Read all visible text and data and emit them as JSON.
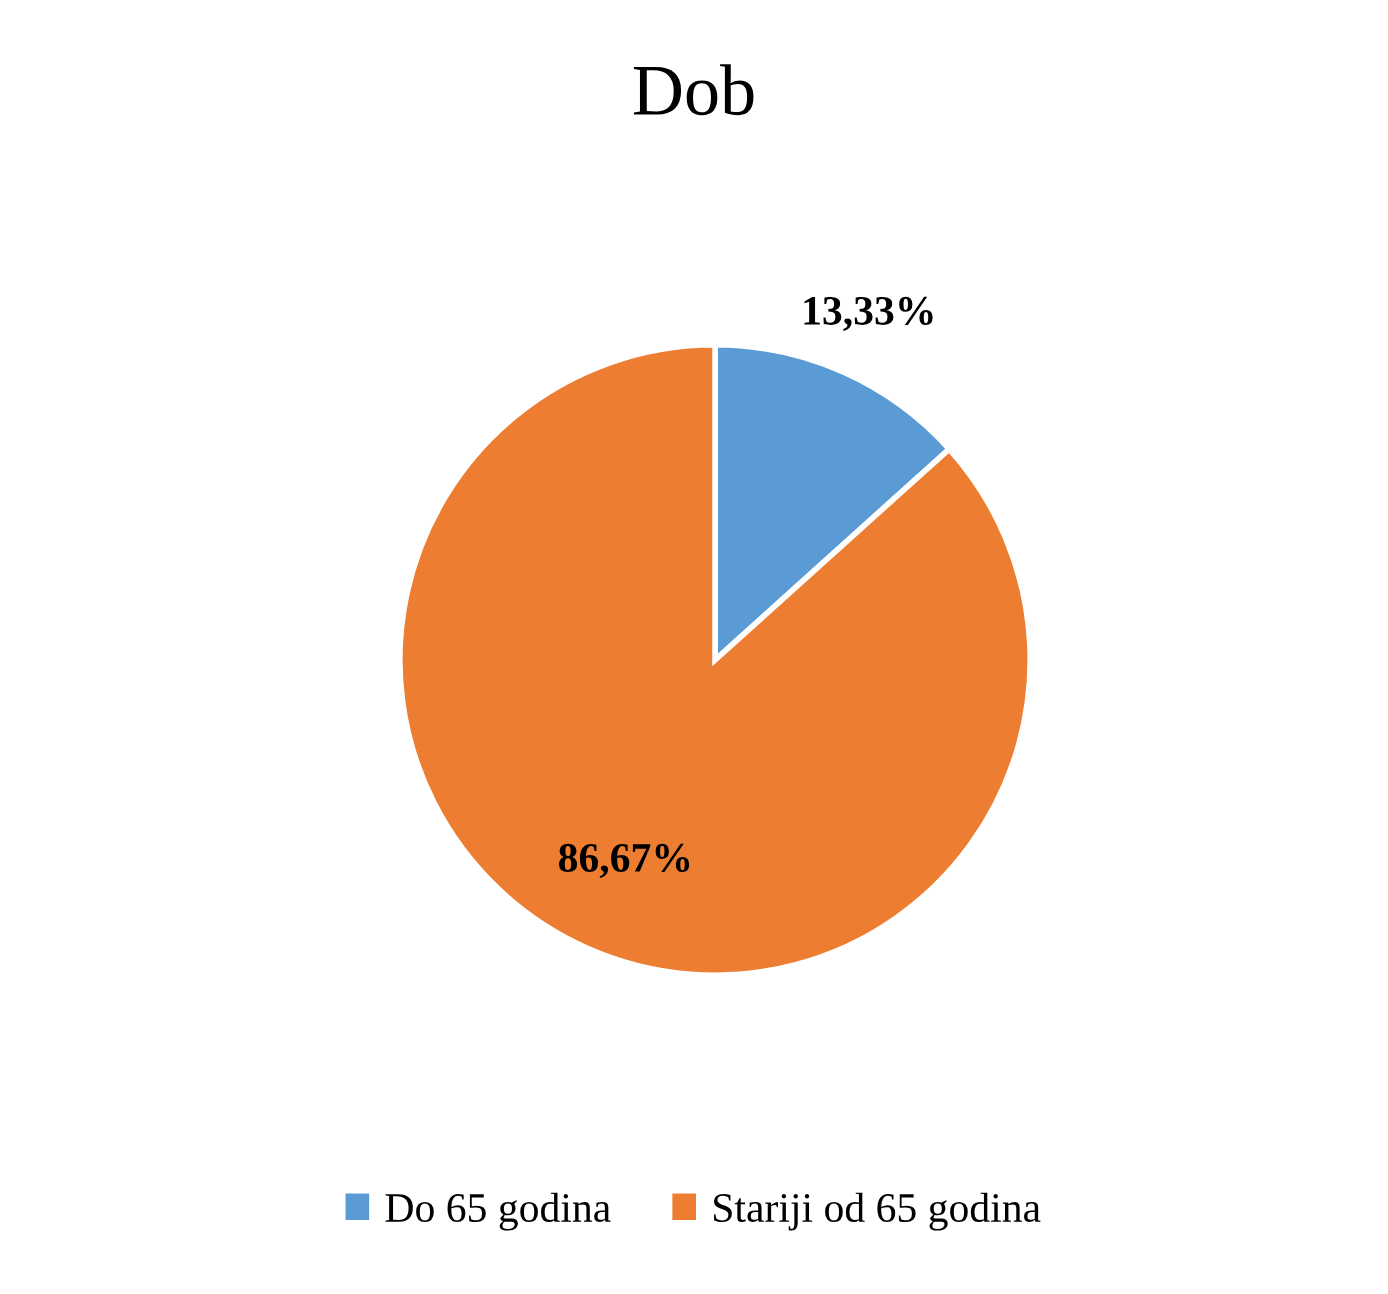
{
  "chart_data": {
    "type": "pie",
    "title": "Dob",
    "categories": [
      "Do 65 godina",
      "Stariji od 65 godina"
    ],
    "values": [
      13.33,
      86.67
    ],
    "colors": [
      "#5b9bd5",
      "#ed7d31"
    ],
    "value_labels": [
      "13,33%",
      "86,67%"
    ],
    "legend": "bottom"
  }
}
